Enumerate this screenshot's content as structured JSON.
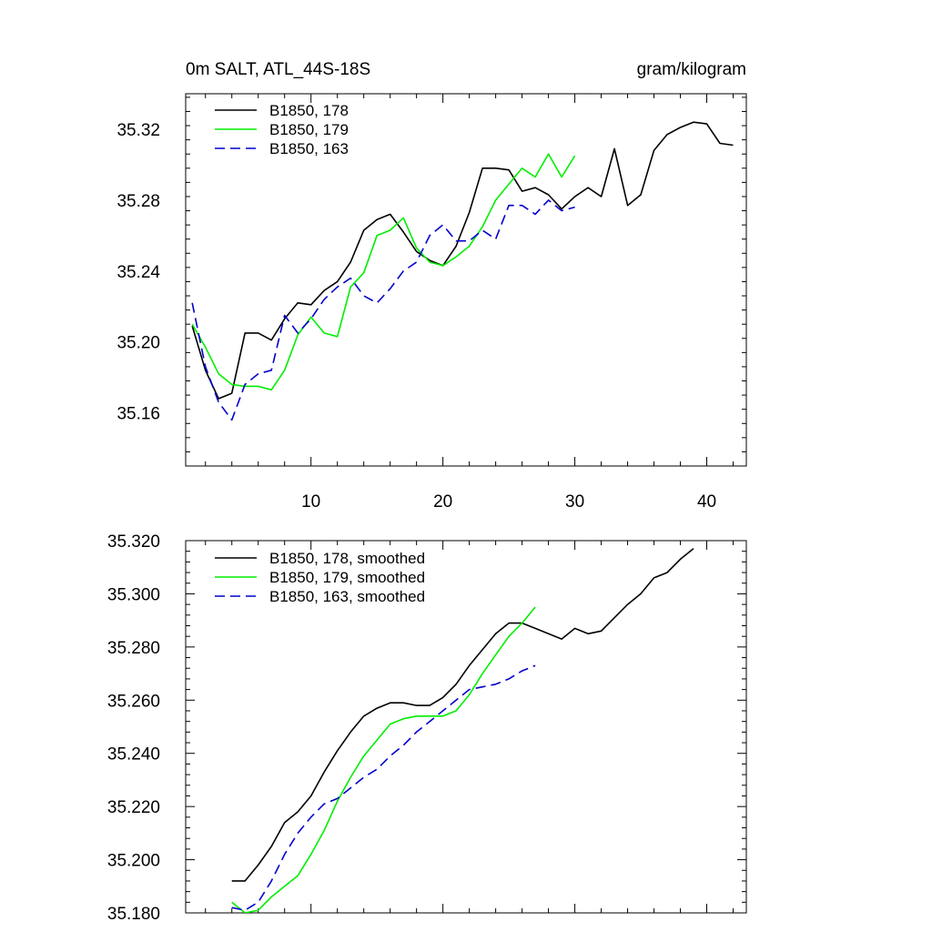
{
  "colors": {
    "black": "#000000",
    "green": "#00ee00",
    "blue": "#0000cc"
  },
  "chart_data": [
    {
      "type": "line",
      "title": "0m SALT, ATL_44S-18S",
      "units": "gram/kilogram",
      "xlim": [
        0.5,
        43
      ],
      "ylim": [
        35.13,
        35.34
      ],
      "xticks": [
        10,
        20,
        30,
        40
      ],
      "yticks": [
        35.16,
        35.2,
        35.24,
        35.28,
        35.32
      ],
      "ytick_labels": [
        "35.16",
        "35.20",
        "35.24",
        "35.28",
        "35.32"
      ],
      "legend": "top-left",
      "series": [
        {
          "name": "B1850, 178",
          "color": "#000000",
          "dash": "solid",
          "x": [
            1,
            2,
            3,
            4,
            5,
            6,
            7,
            8,
            9,
            10,
            11,
            12,
            13,
            14,
            15,
            16,
            17,
            18,
            19,
            20,
            21,
            22,
            23,
            24,
            25,
            26,
            27,
            28,
            29,
            30,
            31,
            32,
            33,
            34,
            35,
            36,
            37,
            38,
            39,
            40,
            41,
            42
          ],
          "y": [
            35.209,
            35.184,
            35.168,
            35.171,
            35.205,
            35.205,
            35.201,
            35.213,
            35.222,
            35.221,
            35.229,
            35.234,
            35.245,
            35.263,
            35.269,
            35.272,
            35.262,
            35.251,
            35.246,
            35.243,
            35.254,
            35.273,
            35.298,
            35.298,
            35.297,
            35.285,
            35.287,
            35.283,
            35.275,
            35.282,
            35.287,
            35.282,
            35.309,
            35.277,
            35.283,
            35.308,
            35.317,
            35.321,
            35.324,
            35.323,
            35.312,
            35.311
          ]
        },
        {
          "name": "B1850, 179",
          "color": "#00ee00",
          "dash": "solid",
          "x": [
            1,
            2,
            3,
            4,
            5,
            6,
            7,
            8,
            9,
            10,
            11,
            12,
            13,
            14,
            15,
            16,
            17,
            18,
            19,
            20,
            21,
            22,
            23,
            24,
            25,
            26,
            27,
            28,
            29,
            30
          ],
          "y": [
            35.21,
            35.197,
            35.182,
            35.176,
            35.175,
            35.175,
            35.173,
            35.184,
            35.204,
            35.214,
            35.205,
            35.203,
            35.231,
            35.239,
            35.26,
            35.263,
            35.27,
            35.253,
            35.245,
            35.243,
            35.248,
            35.254,
            35.265,
            35.28,
            35.289,
            35.298,
            35.293,
            35.306,
            35.293,
            35.305
          ]
        },
        {
          "name": "B1850, 163",
          "color": "#0000cc",
          "dash": "dashed",
          "x": [
            1,
            2,
            3,
            4,
            5,
            6,
            7,
            8,
            9,
            10,
            11,
            12,
            13,
            14,
            15,
            16,
            17,
            18,
            19,
            20,
            21,
            22,
            23,
            24,
            25,
            26,
            27,
            28,
            29,
            30
          ],
          "y": [
            35.222,
            35.186,
            35.166,
            35.156,
            35.176,
            35.182,
            35.184,
            35.215,
            35.205,
            35.213,
            35.224,
            35.231,
            35.236,
            35.226,
            35.222,
            35.23,
            35.24,
            35.245,
            35.26,
            35.266,
            35.257,
            35.257,
            35.263,
            35.258,
            35.277,
            35.277,
            35.272,
            35.28,
            35.274,
            35.276
          ]
        }
      ]
    },
    {
      "type": "line",
      "xlim": [
        0.5,
        43
      ],
      "ylim": [
        35.18,
        35.32
      ],
      "xticks": [
        10,
        20,
        30,
        40
      ],
      "yticks": [
        35.18,
        35.2,
        35.22,
        35.24,
        35.26,
        35.28,
        35.3,
        35.32
      ],
      "ytick_labels": [
        "35.180",
        "35.200",
        "35.220",
        "35.240",
        "35.260",
        "35.280",
        "35.300",
        "35.320"
      ],
      "legend": "top-left",
      "series": [
        {
          "name": "B1850, 178, smoothed",
          "color": "#000000",
          "dash": "solid",
          "x": [
            4,
            5,
            6,
            7,
            8,
            9,
            10,
            11,
            12,
            13,
            14,
            15,
            16,
            17,
            18,
            19,
            20,
            21,
            22,
            23,
            24,
            25,
            26,
            27,
            28,
            29,
            30,
            31,
            32,
            33,
            34,
            35,
            36,
            37,
            38,
            39
          ],
          "y": [
            35.192,
            35.192,
            35.198,
            35.205,
            35.214,
            35.218,
            35.224,
            35.233,
            35.241,
            35.248,
            35.254,
            35.257,
            35.259,
            35.259,
            35.258,
            35.258,
            35.261,
            35.266,
            35.273,
            35.279,
            35.285,
            35.289,
            35.289,
            35.287,
            35.285,
            35.283,
            35.287,
            35.285,
            35.286,
            35.291,
            35.296,
            35.3,
            35.306,
            35.308,
            35.313,
            35.317
          ]
        },
        {
          "name": "B1850, 179, smoothed",
          "color": "#00ee00",
          "dash": "solid",
          "x": [
            4,
            5,
            6,
            7,
            8,
            9,
            10,
            11,
            12,
            13,
            14,
            15,
            16,
            17,
            18,
            19,
            20,
            21,
            22,
            23,
            24,
            25,
            26,
            27
          ],
          "y": [
            35.184,
            35.18,
            35.181,
            35.186,
            35.19,
            35.194,
            35.202,
            35.211,
            35.222,
            35.231,
            35.239,
            35.245,
            35.251,
            35.253,
            35.254,
            35.254,
            35.254,
            35.256,
            35.262,
            35.27,
            35.277,
            35.284,
            35.289,
            35.295
          ]
        },
        {
          "name": "B1850, 163, smoothed",
          "color": "#0000cc",
          "dash": "dashed",
          "x": [
            4,
            5,
            6,
            7,
            8,
            9,
            10,
            11,
            12,
            13,
            14,
            15,
            16,
            17,
            18,
            19,
            20,
            21,
            22,
            23,
            24,
            25,
            26,
            27
          ],
          "y": [
            35.182,
            35.181,
            35.184,
            35.192,
            35.202,
            35.21,
            35.216,
            35.221,
            35.223,
            35.227,
            35.231,
            35.234,
            35.239,
            35.243,
            35.248,
            35.252,
            35.256,
            35.26,
            35.264,
            35.265,
            35.266,
            35.268,
            35.271,
            35.273
          ]
        }
      ]
    }
  ]
}
